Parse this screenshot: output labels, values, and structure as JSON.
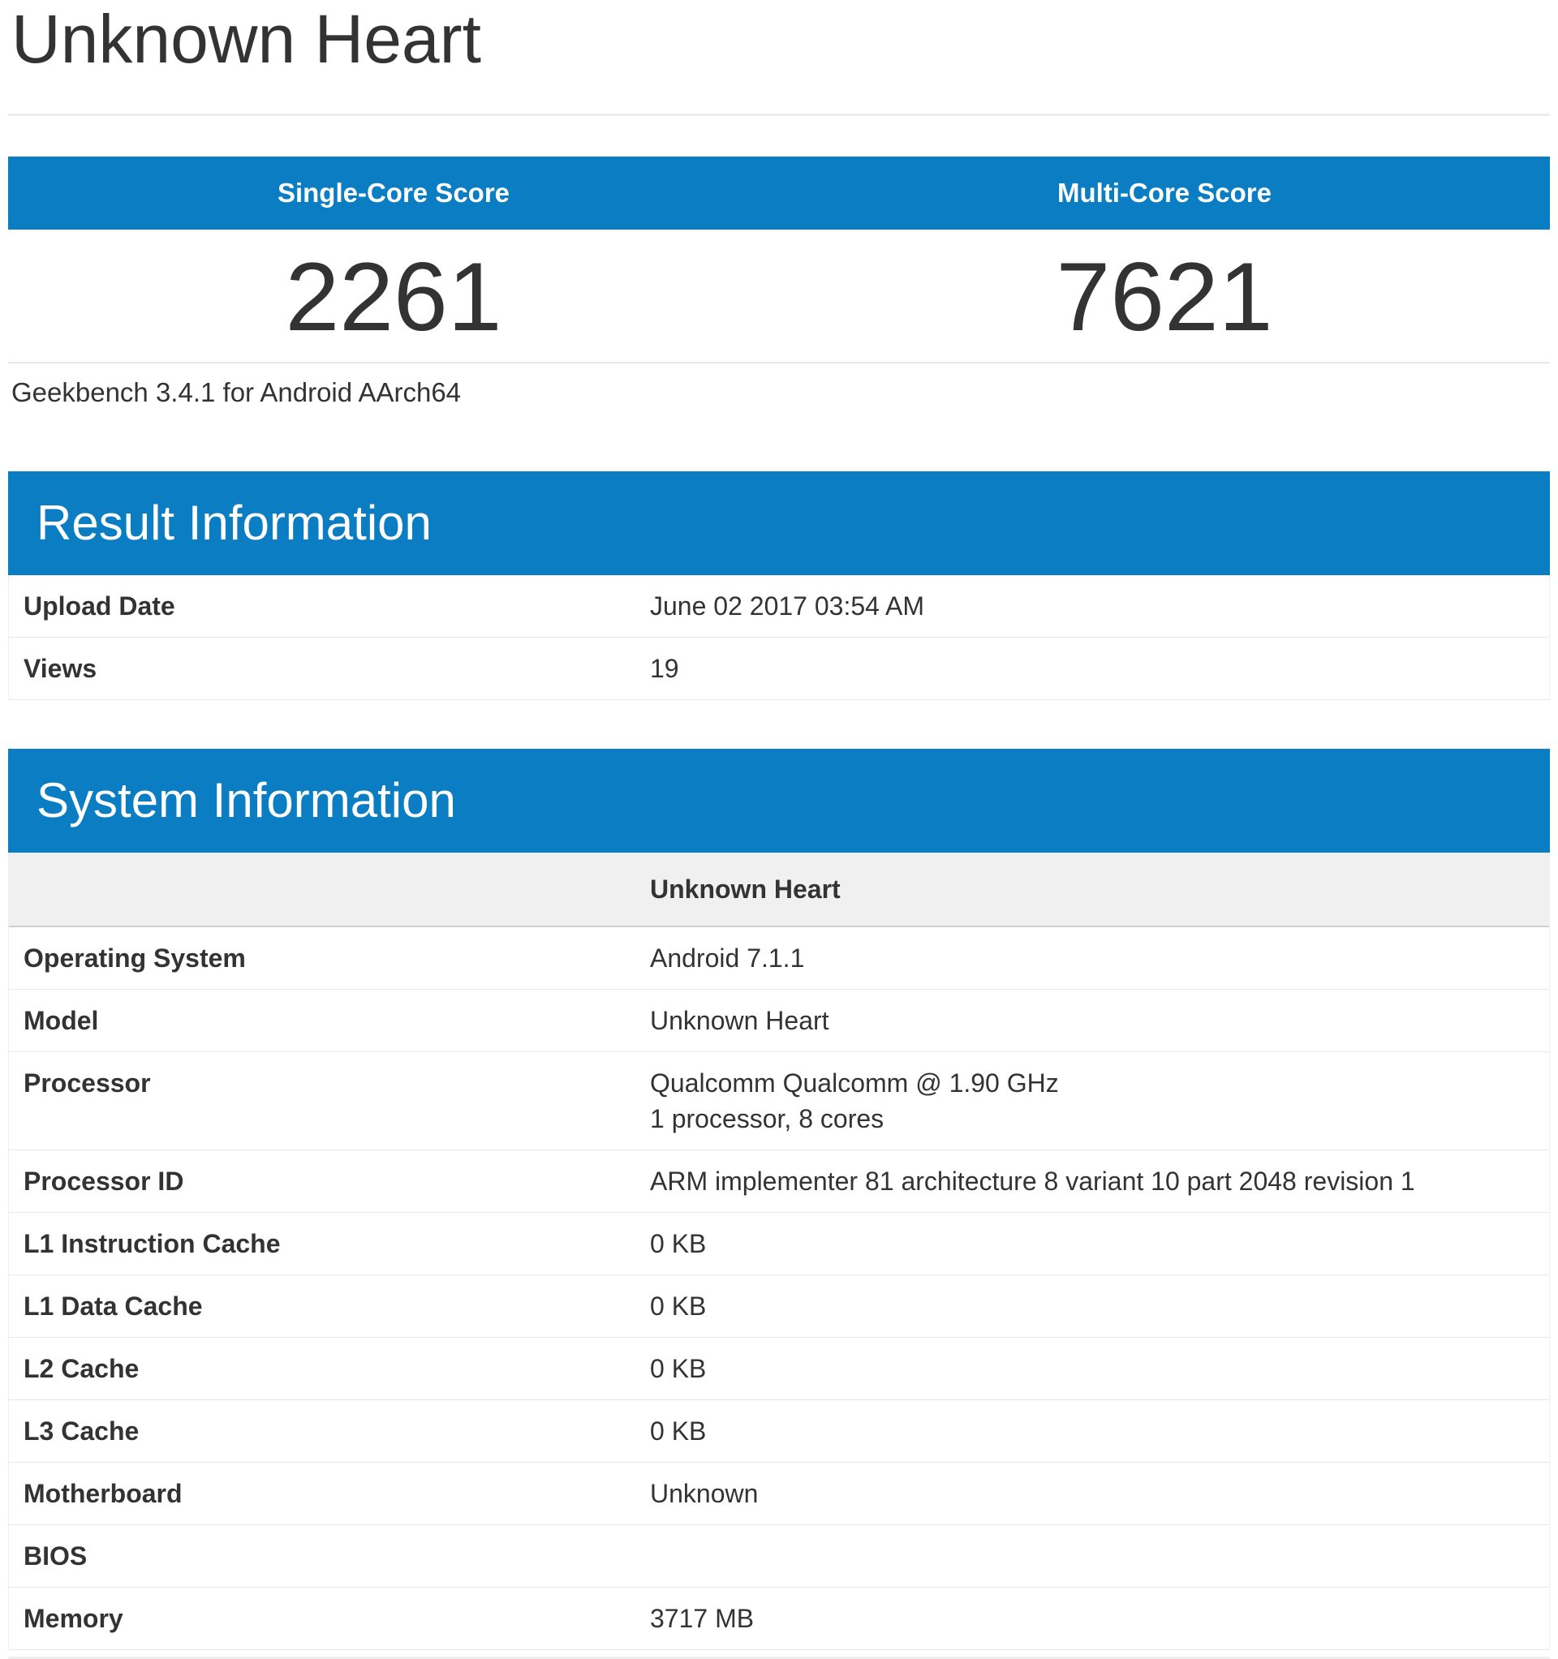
{
  "page": {
    "title": "Unknown Heart",
    "subtitle": "Geekbench 3.4.1 for Android AArch64"
  },
  "colors": {
    "header_blue": "#0b7dc3",
    "text": "#333333",
    "row_border": "#e8e8e8",
    "device_row_bg": "#f0f0f0",
    "device_row_border": "#cfcfcf"
  },
  "scores": {
    "single": {
      "label": "Single-Core Score",
      "value": "2261"
    },
    "multi": {
      "label": "Multi-Core Score",
      "value": "7621"
    }
  },
  "result_information": {
    "title": "Result Information",
    "rows": [
      {
        "label": "Upload Date",
        "value": "June 02 2017 03:54 AM"
      },
      {
        "label": "Views",
        "value": "19"
      }
    ]
  },
  "system_information": {
    "title": "System Information",
    "device_header": "Unknown Heart",
    "rows": [
      {
        "label": "Operating System",
        "value": "Android 7.1.1"
      },
      {
        "label": "Model",
        "value": "Unknown Heart"
      },
      {
        "label": "Processor",
        "value": "Qualcomm Qualcomm @ 1.90 GHz",
        "value2": "1 processor, 8 cores"
      },
      {
        "label": "Processor ID",
        "value": "ARM implementer 81 architecture 8 variant 10 part 2048 revision 1"
      },
      {
        "label": "L1 Instruction Cache",
        "value": "0 KB"
      },
      {
        "label": "L1 Data Cache",
        "value": "0 KB"
      },
      {
        "label": "L2 Cache",
        "value": "0 KB"
      },
      {
        "label": "L3 Cache",
        "value": "0 KB"
      },
      {
        "label": "Motherboard",
        "value": "Unknown"
      },
      {
        "label": "BIOS",
        "value": ""
      },
      {
        "label": "Memory",
        "value": "3717 MB"
      }
    ]
  }
}
